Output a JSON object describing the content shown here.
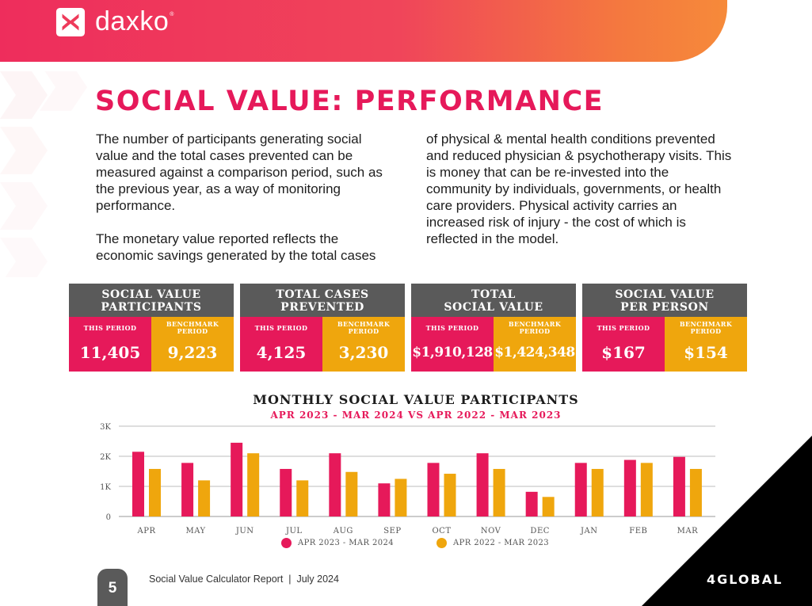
{
  "header": {
    "brand": "daxko",
    "brand_mark": "®",
    "colors": {
      "pink": "#ee2d5c",
      "orange": "#f68a3a"
    }
  },
  "page": {
    "title": "SOCIAL VALUE: PERFORMANCE",
    "paragraphs_left": [
      "The number of participants generating social value and the total cases prevented can be measured against a comparison period, such as the previous year, as a way of monitoring performance.",
      "The monetary value reported reflects the economic savings generated by the total cases"
    ],
    "paragraph_right": "of physical & mental health conditions prevented and reduced physician & psychotherapy visits. This is money that can be re-invested into the community by individuals, governments, or health care providers. Physical activity carries an increased risk of injury - the cost of which is reflected in the model."
  },
  "kpis": [
    {
      "title": "SOCIAL VALUE\nPARTICIPANTS",
      "this_label": "THIS PERIOD",
      "bench_label": "BENCHMARK PERIOD",
      "this_value": "11,405",
      "bench_value": "9,223"
    },
    {
      "title": "TOTAL CASES\nPREVENTED",
      "this_label": "THIS PERIOD",
      "bench_label": "BENCHMARK PERIOD",
      "this_value": "4,125",
      "bench_value": "3,230"
    },
    {
      "title": "TOTAL\nSOCIAL VALUE",
      "this_label": "THIS PERIOD",
      "bench_label": "BENCHMARK PERIOD",
      "this_value": "$1,910,128",
      "bench_value": "$1,424,348"
    },
    {
      "title": "SOCIAL VALUE\nPER PERSON",
      "this_label": "THIS PERIOD",
      "bench_label": "BENCHMARK PERIOD",
      "this_value": "$167",
      "bench_value": "$154"
    }
  ],
  "chart_data": {
    "type": "bar",
    "title": "MONTHLY SOCIAL VALUE PARTICIPANTS",
    "subtitle": "APR 2023 - MAR 2024 VS APR 2022 - MAR 2023",
    "categories": [
      "APR",
      "MAY",
      "JUN",
      "JUL",
      "AUG",
      "SEP",
      "OCT",
      "NOV",
      "DEC",
      "JAN",
      "FEB",
      "MAR"
    ],
    "series": [
      {
        "name": "APR 2023 - MAR 2024",
        "color": "#e6195a",
        "values": [
          2150,
          1780,
          2450,
          1580,
          2100,
          1100,
          1780,
          2100,
          820,
          1780,
          1880,
          1980
        ]
      },
      {
        "name": "APR 2022 - MAR 2023",
        "color": "#efa60d",
        "values": [
          1580,
          1200,
          2100,
          1200,
          1480,
          1250,
          1420,
          1580,
          650,
          1580,
          1780,
          1580
        ]
      }
    ],
    "yticks": [
      0,
      1000,
      2000,
      3000
    ],
    "ytick_labels": [
      "0",
      "1K",
      "2K",
      "3K"
    ],
    "ylim": [
      0,
      3000
    ],
    "grid": true,
    "legend_position": "bottom"
  },
  "footer": {
    "page_number": "5",
    "report_text": "Social Value Calculator Report  |  July 2024",
    "partner": "4GLOBAL"
  }
}
